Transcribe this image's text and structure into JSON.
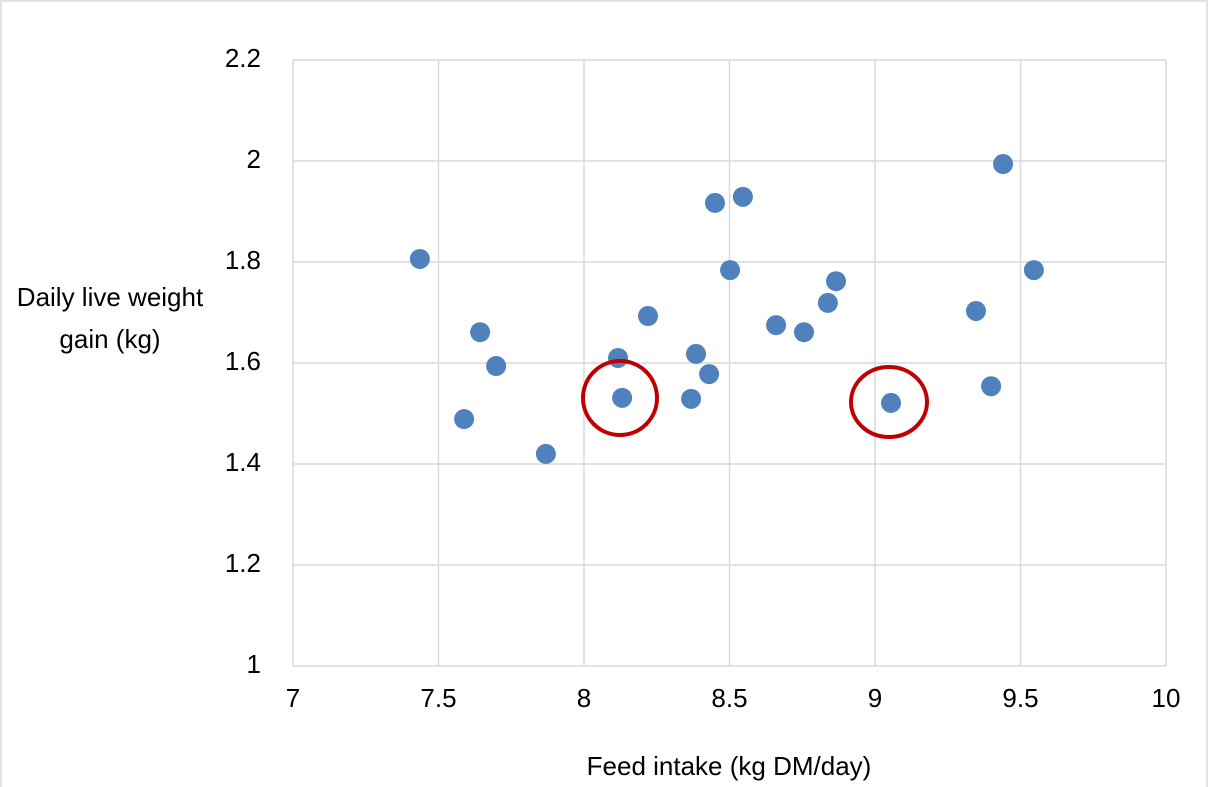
{
  "chart_data": {
    "type": "scatter",
    "xlabel": "Feed intake (kg DM/day)",
    "ylabel": "Daily live weight gain (kg)",
    "color": "#4f81bd",
    "grid": true,
    "xlim": [
      7,
      10
    ],
    "xticks": [
      7,
      7.5,
      8,
      8.5,
      9,
      9.5,
      10
    ],
    "ylim": [
      1,
      2.2
    ],
    "yticks": [
      1,
      1.2,
      1.4,
      1.6,
      1.8,
      2,
      2.2
    ],
    "x": [
      7.436,
      7.643,
      7.698,
      7.588,
      7.869,
      8.117,
      8.131,
      8.22,
      8.368,
      8.385,
      8.43,
      8.45,
      8.546,
      8.502,
      8.66,
      8.756,
      8.838,
      8.866,
      9.055,
      9.347,
      9.399,
      9.44,
      9.546
    ],
    "values": [
      1.806,
      1.661,
      1.594,
      1.489,
      1.42,
      1.61,
      1.531,
      1.693,
      1.529,
      1.618,
      1.578,
      1.917,
      1.929,
      1.784,
      1.675,
      1.661,
      1.719,
      1.762,
      1.521,
      1.703,
      1.554,
      1.994,
      1.784
    ]
  }
}
